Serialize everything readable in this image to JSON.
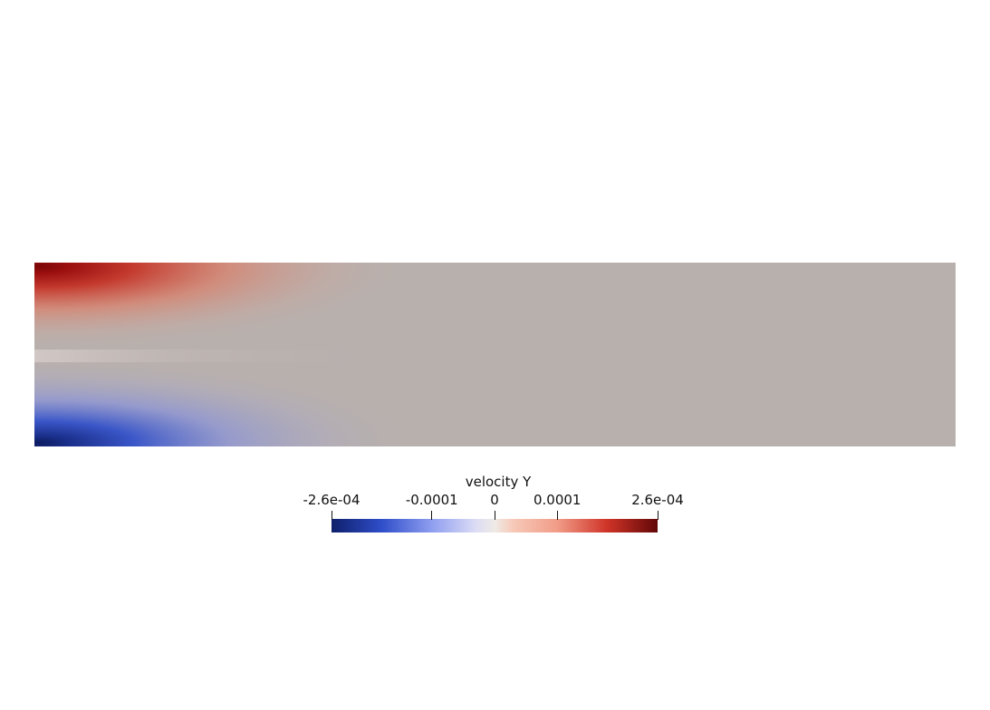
{
  "chart_data": {
    "type": "heatmap",
    "title": "",
    "field_name": "velocity Y",
    "colormap": {
      "name": "diverging-blue-white-red",
      "range": [
        -0.00026,
        0.00026
      ],
      "stops": [
        {
          "value": -0.00026,
          "color": "#0f1f6b"
        },
        {
          "value": -0.00018,
          "color": "#2f4ec9"
        },
        {
          "value": -0.0001,
          "color": "#8f9ef0"
        },
        {
          "value": -3e-05,
          "color": "#dcdcf5"
        },
        {
          "value": 0.0,
          "color": "#eeeae6"
        },
        {
          "value": 3e-05,
          "color": "#f7c9b8"
        },
        {
          "value": 0.0001,
          "color": "#f19c88"
        },
        {
          "value": 0.00018,
          "color": "#cf3327"
        },
        {
          "value": 0.00026,
          "color": "#620808"
        }
      ]
    },
    "colorbar": {
      "title": "velocity Y",
      "ticks": [
        {
          "value": -0.00026,
          "label": "-2.6e-04"
        },
        {
          "value": -0.0001,
          "label": "-0.0001"
        },
        {
          "value": 0.0,
          "label": "0"
        },
        {
          "value": 0.0001,
          "label": "0.0001"
        },
        {
          "value": 0.00026,
          "label": "2.6e-04"
        }
      ]
    },
    "field": {
      "description_visible": "rectangular channel; positive values near upper-left inlet, negative near lower-left inlet, decaying to neutral downstream",
      "background_color": "#b8b0ad",
      "lobes": [
        {
          "sign": 1,
          "peak": 0.00026,
          "color": "#8b0d0d"
        },
        {
          "sign": -1,
          "peak": -0.00026,
          "color": "#16246e"
        }
      ]
    }
  }
}
